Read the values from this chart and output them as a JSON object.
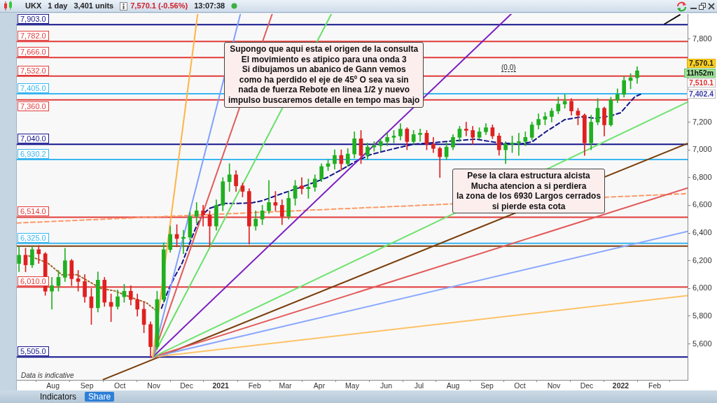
{
  "chart_data": {
    "type": "candlestick",
    "title": "UKX",
    "subtitle": "1 day",
    "x": [
      "2020-07-01",
      "2020-07-07",
      "2020-07-13",
      "2020-07-19",
      "2020-07-25",
      "2020-07-31",
      "2020-08-06",
      "2020-08-12",
      "2020-08-18",
      "2020-08-24",
      "2020-08-30",
      "2020-09-05",
      "2020-09-11",
      "2020-09-17",
      "2020-09-23",
      "2020-09-29",
      "2020-10-05",
      "2020-10-11",
      "2020-10-17",
      "2020-10-23",
      "2020-10-29",
      "2020-11-04",
      "2020-11-10",
      "2020-11-16",
      "2020-11-22",
      "2020-11-28",
      "2020-12-04",
      "2020-12-10",
      "2020-12-16",
      "2020-12-22",
      "2020-12-28",
      "2021-01-03",
      "2021-01-09",
      "2021-01-15",
      "2021-01-21",
      "2021-01-27",
      "2021-02-02",
      "2021-02-08",
      "2021-02-14",
      "2021-02-20",
      "2021-02-26",
      "2021-03-04",
      "2021-03-10",
      "2021-03-16",
      "2021-03-22",
      "2021-03-28",
      "2021-04-03",
      "2021-04-09",
      "2021-04-15",
      "2021-04-21",
      "2021-04-27",
      "2021-05-03",
      "2021-05-09",
      "2021-05-15",
      "2021-05-21",
      "2021-05-27",
      "2021-06-02",
      "2021-06-08",
      "2021-06-14",
      "2021-06-20",
      "2021-06-26",
      "2021-07-02",
      "2021-07-08",
      "2021-07-14",
      "2021-07-20",
      "2021-07-26",
      "2021-08-01",
      "2021-08-07",
      "2021-08-13",
      "2021-08-19",
      "2021-08-25",
      "2021-08-31",
      "2021-09-06",
      "2021-09-12",
      "2021-09-18",
      "2021-09-24",
      "2021-09-30",
      "2021-10-06",
      "2021-10-12",
      "2021-10-18",
      "2021-10-24",
      "2021-10-30",
      "2021-11-05",
      "2021-11-11",
      "2021-11-17",
      "2021-11-23",
      "2021-11-29",
      "2021-12-05",
      "2021-12-11",
      "2021-12-17",
      "2021-12-23",
      "2021-12-29",
      "2022-01-04",
      "2022-01-10",
      "2022-01-16"
    ],
    "ohlc": [
      [
        6180,
        6300,
        6120,
        6240
      ],
      [
        6240,
        6290,
        6120,
        6170
      ],
      [
        6170,
        6300,
        6150,
        6280
      ],
      [
        6280,
        6310,
        6180,
        6250
      ],
      [
        6250,
        6260,
        5950,
        5980
      ],
      [
        5980,
        6080,
        5850,
        6020
      ],
      [
        6020,
        6130,
        5980,
        6080
      ],
      [
        6080,
        6290,
        6050,
        6200
      ],
      [
        6200,
        6210,
        6020,
        6070
      ],
      [
        6070,
        6130,
        5980,
        6050
      ],
      [
        6050,
        6100,
        5900,
        5940
      ],
      [
        5940,
        6000,
        5740,
        5860
      ],
      [
        5860,
        6120,
        5830,
        6060
      ],
      [
        6060,
        6080,
        5870,
        5900
      ],
      [
        5900,
        5960,
        5760,
        5870
      ],
      [
        5870,
        5990,
        5850,
        5940
      ],
      [
        5940,
        6030,
        5900,
        5980
      ],
      [
        5980,
        6020,
        5880,
        5920
      ],
      [
        5920,
        5960,
        5800,
        5850
      ],
      [
        5850,
        5900,
        5680,
        5740
      ],
      [
        5740,
        5760,
        5500,
        5580
      ],
      [
        5580,
        5980,
        5560,
        5920
      ],
      [
        5920,
        6330,
        5900,
        6280
      ],
      [
        6280,
        6450,
        6260,
        6390
      ],
      [
        6390,
        6460,
        6300,
        6360
      ],
      [
        6360,
        6420,
        6250,
        6370
      ],
      [
        6370,
        6550,
        6350,
        6520
      ],
      [
        6520,
        6620,
        6470,
        6560
      ],
      [
        6560,
        6600,
        6450,
        6530
      ],
      [
        6530,
        6560,
        6300,
        6450
      ],
      [
        6450,
        6640,
        6420,
        6600
      ],
      [
        6600,
        6800,
        6560,
        6770
      ],
      [
        6770,
        6900,
        6700,
        6820
      ],
      [
        6820,
        6850,
        6700,
        6740
      ],
      [
        6740,
        6760,
        6660,
        6700
      ],
      [
        6700,
        6720,
        6320,
        6450
      ],
      [
        6450,
        6560,
        6420,
        6500
      ],
      [
        6500,
        6600,
        6460,
        6560
      ],
      [
        6560,
        6780,
        6540,
        6620
      ],
      [
        6620,
        6700,
        6560,
        6600
      ],
      [
        6600,
        6640,
        6460,
        6520
      ],
      [
        6520,
        6700,
        6500,
        6650
      ],
      [
        6650,
        6780,
        6600,
        6740
      ],
      [
        6740,
        6800,
        6680,
        6720
      ],
      [
        6720,
        6790,
        6650,
        6730
      ],
      [
        6730,
        6820,
        6700,
        6790
      ],
      [
        6790,
        6900,
        6770,
        6880
      ],
      [
        6880,
        6930,
        6850,
        6900
      ],
      [
        6900,
        7000,
        6860,
        6960
      ],
      [
        6960,
        7000,
        6850,
        6900
      ],
      [
        6900,
        7010,
        6880,
        6970
      ],
      [
        6970,
        7130,
        6940,
        7080
      ],
      [
        7080,
        7140,
        6900,
        6960
      ],
      [
        6960,
        7050,
        6930,
        7020
      ],
      [
        7020,
        7060,
        6990,
        7030
      ],
      [
        7030,
        7080,
        6990,
        7060
      ],
      [
        7060,
        7120,
        7030,
        7090
      ],
      [
        7090,
        7140,
        7050,
        7100
      ],
      [
        7100,
        7190,
        7070,
        7150
      ],
      [
        7150,
        7160,
        7000,
        7060
      ],
      [
        7060,
        7140,
        7040,
        7110
      ],
      [
        7110,
        7150,
        7060,
        7120
      ],
      [
        7120,
        7140,
        7000,
        7040
      ],
      [
        7040,
        7090,
        6980,
        7010
      ],
      [
        7010,
        7020,
        6800,
        6950
      ],
      [
        6950,
        7050,
        6930,
        7020
      ],
      [
        7020,
        7110,
        7000,
        7090
      ],
      [
        7090,
        7170,
        7060,
        7150
      ],
      [
        7150,
        7200,
        7100,
        7140
      ],
      [
        7140,
        7170,
        7040,
        7090
      ],
      [
        7090,
        7160,
        7080,
        7130
      ],
      [
        7130,
        7190,
        7110,
        7160
      ],
      [
        7160,
        7180,
        7080,
        7100
      ],
      [
        7100,
        7120,
        6960,
        7000
      ],
      [
        7000,
        7060,
        6900,
        7040
      ],
      [
        7040,
        7100,
        6980,
        7050
      ],
      [
        7050,
        7120,
        6960,
        7060
      ],
      [
        7060,
        7130,
        7030,
        7090
      ],
      [
        7090,
        7200,
        7070,
        7180
      ],
      [
        7180,
        7260,
        7150,
        7220
      ],
      [
        7220,
        7270,
        7180,
        7240
      ],
      [
        7240,
        7300,
        7200,
        7280
      ],
      [
        7280,
        7380,
        7260,
        7330
      ],
      [
        7330,
        7400,
        7300,
        7350
      ],
      [
        7350,
        7370,
        7250,
        7280
      ],
      [
        7280,
        7300,
        7180,
        7250
      ],
      [
        7250,
        7260,
        6960,
        7050
      ],
      [
        7050,
        7250,
        7000,
        7200
      ],
      [
        7200,
        7370,
        7180,
        7300
      ],
      [
        7300,
        7310,
        7100,
        7180
      ],
      [
        7180,
        7380,
        7170,
        7360
      ],
      [
        7360,
        7440,
        7340,
        7400
      ],
      [
        7400,
        7530,
        7380,
        7500
      ],
      [
        7500,
        7550,
        7440,
        7520
      ],
      [
        7520,
        7600,
        7480,
        7570.1
      ]
    ],
    "colors": [
      "#20b020",
      "#e02020",
      "#20b020",
      "#e02020",
      "#e02020",
      "#20b020",
      "#20b020",
      "#20b020",
      "#e02020",
      "#e02020",
      "#e02020",
      "#e02020",
      "#20b020",
      "#e02020",
      "#e02020",
      "#20b020",
      "#20b020",
      "#e02020",
      "#e02020",
      "#e02020",
      "#e02020",
      "#20b020",
      "#20b020",
      "#20b020",
      "#e02020",
      "#20b020",
      "#20b020",
      "#20b020",
      "#e02020",
      "#e02020",
      "#20b020",
      "#20b020",
      "#20b020",
      "#e02020",
      "#e02020",
      "#e02020",
      "#20b020",
      "#20b020",
      "#20b020",
      "#e02020",
      "#e02020",
      "#20b020",
      "#20b020",
      "#e02020",
      "#20b020",
      "#20b020",
      "#20b020",
      "#20b020",
      "#20b020",
      "#e02020",
      "#20b020",
      "#20b020",
      "#e02020",
      "#20b020",
      "#20b020",
      "#20b020",
      "#20b020",
      "#20b020",
      "#20b020",
      "#e02020",
      "#20b020",
      "#20b020",
      "#e02020",
      "#e02020",
      "#e02020",
      "#20b020",
      "#20b020",
      "#20b020",
      "#e02020",
      "#e02020",
      "#20b020",
      "#20b020",
      "#e02020",
      "#e02020",
      "#20b020",
      "#20b020",
      "#20b020",
      "#20b020",
      "#20b020",
      "#20b020",
      "#20b020",
      "#20b020",
      "#20b020",
      "#20b020",
      "#e02020",
      "#e02020",
      "#e02020",
      "#20b020",
      "#20b020",
      "#e02020",
      "#20b020",
      "#20b020",
      "#20b020",
      "#20b020",
      "#20b020"
    ],
    "series": [
      {
        "type": "line",
        "color": "#ffb347",
        "x": [
          "2020-10-31",
          "2020-12-11"
        ],
        "values": [
          5505,
          7980
        ]
      },
      {
        "type": "line",
        "color": "#7fa0ff",
        "x": [
          "2020-10-31",
          "2021-01-19"
        ],
        "values": [
          5505,
          7980
        ]
      },
      {
        "type": "line",
        "color": "#e35a5a",
        "x": [
          "2020-10-31",
          "2021-02-17"
        ],
        "values": [
          5505,
          7980
        ]
      },
      {
        "type": "line",
        "color": "#66e066",
        "x": [
          "2020-10-31",
          "2021-04-12"
        ],
        "values": [
          5505,
          7980
        ]
      },
      {
        "type": "line",
        "color": "#7d1fc4",
        "x": [
          "2020-10-31",
          "2021-09-23"
        ],
        "values": [
          5505,
          7980
        ]
      },
      {
        "type": "line",
        "color": "#6fe36f",
        "x": [
          "2020-10-31",
          "2022-03-03"
        ],
        "values": [
          5505,
          7344
        ]
      },
      {
        "type": "line",
        "color": "#e35a5a",
        "x": [
          "2020-10-31",
          "2022-03-03"
        ],
        "values": [
          5505,
          6724
        ]
      },
      {
        "type": "line",
        "color": "#8aa8ff",
        "x": [
          "2020-10-31",
          "2022-03-03"
        ],
        "values": [
          5505,
          6411
        ]
      },
      {
        "type": "line",
        "color": "#ffc266",
        "x": [
          "2020-10-31",
          "2022-03-03"
        ],
        "values": [
          5505,
          5948
        ]
      },
      {
        "type": "line",
        "color": "#7b3f0c",
        "x": [
          "2020-09-16",
          "2022-03-03"
        ],
        "values": [
          5343,
          7046
        ]
      },
      {
        "type": "line",
        "color": "#111111",
        "x": [
          "2022-02-10",
          "2022-02-24"
        ],
        "values": [
          7908,
          7974
        ]
      },
      {
        "type": "line",
        "color": "#ff9966",
        "line_style": "dashed",
        "x": [
          "2020-06-29",
          "2022-03-03"
        ],
        "values": [
          6472,
          6684
        ]
      },
      {
        "type": "line",
        "color": "#14148c",
        "line_style": "dashed",
        "x": [
          "2020-11-08",
          "2020-11-14",
          "2020-11-20",
          "2020-11-27",
          "2020-12-03",
          "2020-12-10",
          "2020-12-16",
          "2020-12-22",
          "2021-01-04",
          "2021-01-17",
          "2021-01-30",
          "2021-02-08",
          "2021-02-24",
          "2021-03-22",
          "2021-04-08",
          "2021-04-23",
          "2021-05-04",
          "2021-05-18",
          "2021-06-07",
          "2021-06-26",
          "2021-07-15",
          "2021-08-03",
          "2021-08-22",
          "2021-09-10",
          "2021-09-30",
          "2021-10-12",
          "2021-10-25",
          "2021-11-11",
          "2021-11-26",
          "2021-12-09",
          "2021-12-22",
          "2022-01-01",
          "2022-01-14",
          "2022-01-19"
        ],
        "values": [
          5857,
          5983,
          6084,
          6185,
          6311,
          6452,
          6537,
          6578,
          6613,
          6613,
          6618,
          6633,
          6679,
          6749,
          6800,
          6865,
          6915,
          6966,
          7006,
          7041,
          7052,
          7066,
          7077,
          7052,
          7041,
          7057,
          7132,
          7218,
          7238,
          7228,
          7243,
          7268,
          7384,
          7400
        ]
      },
      {
        "type": "line",
        "color": "#a0642a",
        "line_style": "dotted",
        "x": [
          "2020-07-10",
          "2020-07-27",
          "2020-08-09",
          "2020-08-23",
          "2020-09-03",
          "2020-09-14",
          "2020-09-26",
          "2020-10-12",
          "2020-10-25",
          "2020-11-02"
        ],
        "values": [
          6235,
          6185,
          6099,
          6099,
          6049,
          5999,
          5983,
          5933,
          5898,
          5847
        ]
      }
    ],
    "xlim": [
      "2020-06-29",
      "2022-03-03"
    ],
    "xticks": [
      {
        "value": "2020-08-01",
        "label": "Aug"
      },
      {
        "value": "2020-09-01",
        "label": "Sep"
      },
      {
        "value": "2020-10-01",
        "label": "Oct"
      },
      {
        "value": "2020-11-01",
        "label": "Nov"
      },
      {
        "value": "2020-12-01",
        "label": "Dec"
      },
      {
        "value": "2021-01-01",
        "label": "2021"
      },
      {
        "value": "2021-02-01",
        "label": "Feb"
      },
      {
        "value": "2021-03-01",
        "label": "Mar"
      },
      {
        "value": "2021-04-01",
        "label": "Apr"
      },
      {
        "value": "2021-05-01",
        "label": "May"
      },
      {
        "value": "2021-06-01",
        "label": "Jun"
      },
      {
        "value": "2021-07-01",
        "label": "Jul"
      },
      {
        "value": "2021-08-01",
        "label": "Aug"
      },
      {
        "value": "2021-09-01",
        "label": "Sep"
      },
      {
        "value": "2021-10-01",
        "label": "Oct"
      },
      {
        "value": "2021-11-01",
        "label": "Nov"
      },
      {
        "value": "2021-12-01",
        "label": "Dec"
      },
      {
        "value": "2022-01-01",
        "label": "2022"
      },
      {
        "value": "2022-02-01",
        "label": "Feb"
      },
      {
        "value": "2022-03-01",
        "label": null
      }
    ],
    "ylim": [
      5340,
      7980
    ],
    "yticks": [
      {
        "value": 5600,
        "label": "5,600"
      },
      {
        "value": 5800,
        "label": "5,800"
      },
      {
        "value": 6000,
        "label": "6,000"
      },
      {
        "value": 6200,
        "label": "6,200"
      },
      {
        "value": 6400,
        "label": "6,400"
      },
      {
        "value": 6600,
        "label": "6,600"
      },
      {
        "value": 6800,
        "label": "6,800"
      },
      {
        "value": 7000,
        "label": "7,000"
      },
      {
        "value": 7200,
        "label": "7,200"
      },
      {
        "value": 7400,
        "label": null
      },
      {
        "value": 7600,
        "label": null
      },
      {
        "value": 7800,
        "label": "7,800"
      }
    ],
    "ref_lines": [
      {
        "axis": "y",
        "value": 7903,
        "label": "7,903.0",
        "color": "#14148c"
      },
      {
        "axis": "y",
        "value": 7782,
        "label": "7,782.0",
        "color": "#e23b3b"
      },
      {
        "axis": "y",
        "value": 7666,
        "label": "7,666.0",
        "color": "#e23b3b"
      },
      {
        "axis": "y",
        "value": 7532,
        "label": "7,532.0",
        "color": "#e23b3b"
      },
      {
        "axis": "y",
        "value": 7405,
        "label": "7,405.0",
        "color": "#38b6f0"
      },
      {
        "axis": "y",
        "value": 7360,
        "label": "7,360.0",
        "color": "#e23b3b"
      },
      {
        "axis": "y",
        "value": 7040,
        "label": "7,040.0",
        "color": "#14148c"
      },
      {
        "axis": "y",
        "value": 6930.2,
        "label": "6,930.2",
        "color": "#38b6f0"
      },
      {
        "axis": "y",
        "value": 6514,
        "label": "6,514.0",
        "color": "#e23b3b"
      },
      {
        "axis": "y",
        "value": 6325,
        "label": "6,325.0",
        "color": "#38b6f0"
      },
      {
        "axis": "y",
        "value": 6305,
        "color": "#7b3f0c"
      },
      {
        "axis": "y",
        "value": 6010,
        "label": "6,010.0",
        "color": "#e23b3b"
      },
      {
        "axis": "y",
        "value": 5505,
        "label": "5,505.0",
        "color": "#14148c"
      }
    ],
    "annotations": [
      "Supongo que aqui esta el origen de la consulta\nEl movimiento es atipico para una onda 3\nSi dibujamos un abanico de Gann vemos\ncomo ha perdido el eje de 45º O sea va sin\nnada de fuerza Rebote en linea 1/2 y nuevo\nimpulso buscaremos detalle en tempo mas bajo",
      "Pese la clara estructura alcista\nMucha atencion a si perdiera\nla zona de los 6930 Largos cerrados\nsi pierde esta cota",
      "Data is indicative",
      "(0.0)",
      "7,570.1",
      "11h52m",
      "7,510.1",
      "7,402.4",
      "3,401 units",
      "7,570.1 (-0.56%)",
      "13:07:38",
      "Indicators",
      "Share"
    ],
    "marker": "none"
  }
}
